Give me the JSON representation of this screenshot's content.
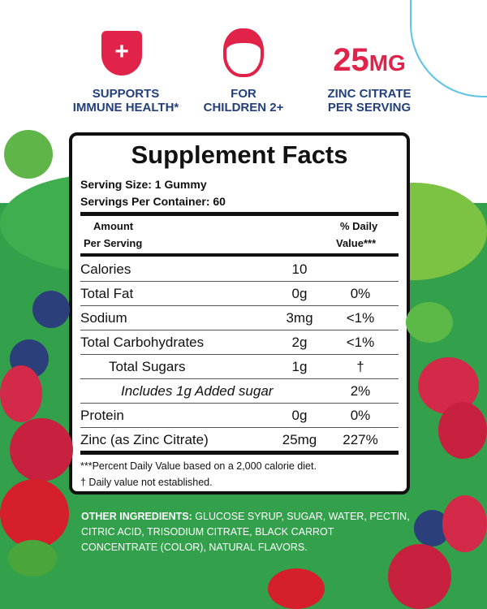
{
  "badges": {
    "immune": {
      "line1": "SUPPORTS",
      "line2": "IMMUNE HEALTH*"
    },
    "children": {
      "line1": "FOR",
      "line2": "CHILDREN 2+"
    },
    "zinc": {
      "amount": "25",
      "unit": "MG",
      "line1": "ZINC CITRATE",
      "line2": "PER SERVING"
    }
  },
  "facts": {
    "title": "Supplement Facts",
    "serving_size": "Serving Size: 1 Gummy",
    "servings_per_container": "Servings Per Container: 60",
    "header_amount_1": "Amount",
    "header_amount_2": "Per Serving",
    "header_dv_1": "% Daily",
    "header_dv_2": "Value***",
    "rows": [
      {
        "name": "Calories",
        "amount": "10",
        "dv": ""
      },
      {
        "name": "Total Fat",
        "amount": "0g",
        "dv": "0%"
      },
      {
        "name": "Sodium",
        "amount": "3mg",
        "dv": "<1%"
      },
      {
        "name": "Total Carbohydrates",
        "amount": "2g",
        "dv": "<1%"
      },
      {
        "name": "Total Sugars",
        "amount": "1g",
        "dv": "†"
      },
      {
        "name": "Includes 1g Added sugar",
        "amount": "",
        "dv": "2%"
      },
      {
        "name": "Protein",
        "amount": "0g",
        "dv": "0%"
      },
      {
        "name": "Zinc (as Zinc Citrate)",
        "amount": "25mg",
        "dv": "227%"
      }
    ],
    "footnote_1": "***Percent Daily Value based on a 2,000 calorie diet.",
    "footnote_2": "† Daily value not established."
  },
  "ingredients": {
    "label": "OTHER INGREDIENTS:",
    "text": " GLUCOSE SYRUP, SUGAR, WATER, PECTIN, CITRIC ACID, TRISODIUM CITRATE, BLACK CARROT CONCENTRATE (COLOR), NATURAL FLAVORS."
  },
  "colors": {
    "green": "#33a04b",
    "red": "#e1234a",
    "navy": "#23407a"
  }
}
